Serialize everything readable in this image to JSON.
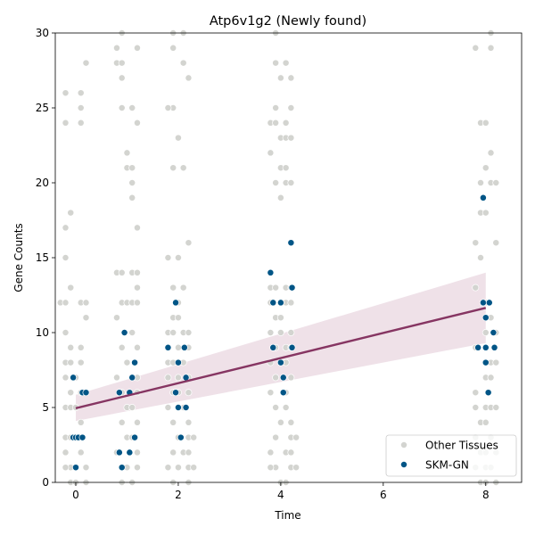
{
  "chart_data": {
    "type": "scatter",
    "title": "Atp6v1g2 (Newly found)",
    "xlabel": "Time",
    "ylabel": "Gene Counts",
    "xlim": [
      -0.4,
      8.7
    ],
    "ylim": [
      0,
      30
    ],
    "xticks": [
      0,
      2,
      4,
      6,
      8
    ],
    "yticks": [
      0,
      5,
      10,
      15,
      20,
      25,
      30
    ],
    "legend_position": "lower-right",
    "series": [
      {
        "name": "Other Tissues",
        "color": "#d3d4d0",
        "points": [
          [
            -0.2,
            26
          ],
          [
            -0.2,
            24
          ],
          [
            -0.1,
            18
          ],
          [
            -0.2,
            17
          ],
          [
            -0.2,
            15
          ],
          [
            -0.3,
            12
          ],
          [
            -0.2,
            12
          ],
          [
            -0.1,
            13
          ],
          [
            -0.2,
            10
          ],
          [
            -0.1,
            9
          ],
          [
            -0.2,
            8
          ],
          [
            -0.1,
            8
          ],
          [
            -0.2,
            7
          ],
          [
            -0.1,
            6
          ],
          [
            -0.2,
            5
          ],
          [
            -0.1,
            5
          ],
          [
            -0.2,
            3
          ],
          [
            -0.1,
            3
          ],
          [
            -0.2,
            2
          ],
          [
            -0.1,
            1
          ],
          [
            -0.2,
            1
          ],
          [
            -0.1,
            0
          ],
          [
            0.1,
            26
          ],
          [
            0.1,
            25
          ],
          [
            0.1,
            24
          ],
          [
            0.2,
            28
          ],
          [
            0.1,
            12
          ],
          [
            0.2,
            12
          ],
          [
            0.2,
            11
          ],
          [
            0.1,
            9
          ],
          [
            0.1,
            8
          ],
          [
            0.0,
            7
          ],
          [
            0.1,
            6
          ],
          [
            0.0,
            5
          ],
          [
            0.1,
            4
          ],
          [
            0.0,
            3
          ],
          [
            0.1,
            2
          ],
          [
            0.2,
            1
          ],
          [
            0.0,
            0
          ],
          [
            0.2,
            0
          ],
          [
            0.8,
            29
          ],
          [
            0.8,
            28
          ],
          [
            0.9,
            28
          ],
          [
            0.9,
            27
          ],
          [
            0.9,
            25
          ],
          [
            0.9,
            30
          ],
          [
            1.0,
            22
          ],
          [
            1.0,
            21
          ],
          [
            1.1,
            21
          ],
          [
            1.1,
            20
          ],
          [
            1.1,
            19
          ],
          [
            0.8,
            14
          ],
          [
            0.9,
            14
          ],
          [
            0.9,
            12
          ],
          [
            1.0,
            12
          ],
          [
            0.8,
            11
          ],
          [
            0.9,
            9
          ],
          [
            1.0,
            8
          ],
          [
            0.8,
            7
          ],
          [
            0.9,
            6
          ],
          [
            1.0,
            5
          ],
          [
            0.9,
            4
          ],
          [
            1.0,
            3
          ],
          [
            0.8,
            2
          ],
          [
            1.0,
            1
          ],
          [
            0.9,
            0
          ],
          [
            1.2,
            29
          ],
          [
            1.1,
            25
          ],
          [
            1.2,
            24
          ],
          [
            1.2,
            17
          ],
          [
            1.1,
            14
          ],
          [
            1.2,
            14
          ],
          [
            1.2,
            13
          ],
          [
            1.1,
            12
          ],
          [
            1.2,
            12
          ],
          [
            1.1,
            10
          ],
          [
            1.2,
            9
          ],
          [
            1.1,
            7
          ],
          [
            1.2,
            7
          ],
          [
            1.2,
            6
          ],
          [
            1.1,
            5
          ],
          [
            1.2,
            4
          ],
          [
            1.1,
            3
          ],
          [
            1.2,
            2
          ],
          [
            1.2,
            1
          ],
          [
            1.1,
            0
          ],
          [
            1.9,
            25
          ],
          [
            1.8,
            25
          ],
          [
            1.9,
            29
          ],
          [
            1.9,
            30
          ],
          [
            2.0,
            23
          ],
          [
            1.9,
            21
          ],
          [
            1.8,
            15
          ],
          [
            1.9,
            13
          ],
          [
            2.0,
            12
          ],
          [
            1.9,
            11
          ],
          [
            2.0,
            11
          ],
          [
            1.8,
            10
          ],
          [
            1.9,
            10
          ],
          [
            2.0,
            9
          ],
          [
            1.8,
            8
          ],
          [
            1.9,
            8
          ],
          [
            1.8,
            7
          ],
          [
            2.0,
            7
          ],
          [
            1.9,
            6
          ],
          [
            2.0,
            6
          ],
          [
            1.8,
            5
          ],
          [
            1.9,
            4
          ],
          [
            2.0,
            3
          ],
          [
            1.9,
            2
          ],
          [
            1.8,
            1
          ],
          [
            2.0,
            1
          ],
          [
            1.9,
            0
          ],
          [
            2.1,
            28
          ],
          [
            2.2,
            27
          ],
          [
            2.1,
            30
          ],
          [
            2.1,
            21
          ],
          [
            2.0,
            15
          ],
          [
            2.2,
            16
          ],
          [
            2.1,
            13
          ],
          [
            2.1,
            10
          ],
          [
            2.2,
            10
          ],
          [
            2.2,
            9
          ],
          [
            2.1,
            8
          ],
          [
            2.2,
            7
          ],
          [
            2.2,
            6
          ],
          [
            2.1,
            5
          ],
          [
            2.2,
            4
          ],
          [
            2.2,
            3
          ],
          [
            2.3,
            3
          ],
          [
            2.1,
            2
          ],
          [
            2.2,
            2
          ],
          [
            2.2,
            1
          ],
          [
            2.3,
            1
          ],
          [
            2.2,
            0
          ],
          [
            3.8,
            24
          ],
          [
            3.8,
            22
          ],
          [
            3.9,
            30
          ],
          [
            3.9,
            28
          ],
          [
            3.9,
            25
          ],
          [
            4.0,
            27
          ],
          [
            3.9,
            24
          ],
          [
            4.0,
            23
          ],
          [
            4.0,
            21
          ],
          [
            3.9,
            20
          ],
          [
            4.0,
            19
          ],
          [
            3.8,
            13
          ],
          [
            3.9,
            13
          ],
          [
            3.8,
            12
          ],
          [
            4.0,
            12
          ],
          [
            3.9,
            11
          ],
          [
            4.0,
            11
          ],
          [
            3.8,
            10
          ],
          [
            4.0,
            10
          ],
          [
            3.9,
            9
          ],
          [
            3.8,
            8
          ],
          [
            4.0,
            8
          ],
          [
            3.9,
            7
          ],
          [
            3.8,
            6
          ],
          [
            3.9,
            5
          ],
          [
            4.0,
            4
          ],
          [
            3.9,
            3
          ],
          [
            3.8,
            2
          ],
          [
            3.9,
            1
          ],
          [
            3.8,
            1
          ],
          [
            4.0,
            0
          ],
          [
            4.1,
            28
          ],
          [
            4.2,
            27
          ],
          [
            4.1,
            24
          ],
          [
            4.1,
            23
          ],
          [
            4.2,
            23
          ],
          [
            4.2,
            25
          ],
          [
            4.1,
            21
          ],
          [
            4.1,
            20
          ],
          [
            4.2,
            20
          ],
          [
            4.1,
            13
          ],
          [
            4.2,
            13
          ],
          [
            4.1,
            12
          ],
          [
            4.2,
            12
          ],
          [
            4.2,
            10
          ],
          [
            4.1,
            9
          ],
          [
            4.2,
            9
          ],
          [
            4.1,
            8
          ],
          [
            4.2,
            7
          ],
          [
            4.1,
            6
          ],
          [
            4.1,
            5
          ],
          [
            4.2,
            4
          ],
          [
            4.2,
            3
          ],
          [
            4.3,
            3
          ],
          [
            4.1,
            2
          ],
          [
            4.2,
            2
          ],
          [
            4.2,
            1
          ],
          [
            4.3,
            1
          ],
          [
            4.1,
            0
          ],
          [
            7.8,
            29
          ],
          [
            7.8,
            16
          ],
          [
            7.8,
            13
          ],
          [
            7.9,
            24
          ],
          [
            7.9,
            20
          ],
          [
            7.9,
            18
          ],
          [
            7.9,
            15
          ],
          [
            7.8,
            9
          ],
          [
            7.8,
            6
          ],
          [
            7.8,
            5
          ],
          [
            7.9,
            4
          ],
          [
            7.8,
            3
          ],
          [
            7.9,
            2
          ],
          [
            7.8,
            1
          ],
          [
            7.9,
            0
          ],
          [
            8.0,
            24
          ],
          [
            8.0,
            21
          ],
          [
            8.0,
            18
          ],
          [
            8.0,
            12
          ],
          [
            8.0,
            10
          ],
          [
            8.0,
            8
          ],
          [
            8.0,
            7
          ],
          [
            8.0,
            5
          ],
          [
            8.0,
            4
          ],
          [
            8.0,
            2
          ],
          [
            8.0,
            1
          ],
          [
            8.0,
            0
          ],
          [
            8.1,
            30
          ],
          [
            8.1,
            29
          ],
          [
            8.1,
            22
          ],
          [
            8.1,
            20
          ],
          [
            8.2,
            20
          ],
          [
            8.2,
            16
          ],
          [
            8.1,
            11
          ],
          [
            8.2,
            10
          ],
          [
            8.1,
            8
          ],
          [
            8.2,
            8
          ],
          [
            8.1,
            7
          ],
          [
            8.1,
            5
          ],
          [
            8.2,
            5
          ],
          [
            8.1,
            3
          ],
          [
            8.2,
            2
          ],
          [
            8.1,
            1
          ],
          [
            8.2,
            0
          ]
        ]
      },
      {
        "name": "SKM-GN",
        "color": "#005586",
        "points": [
          [
            -0.05,
            7
          ],
          [
            -0.05,
            3
          ],
          [
            0.0,
            3
          ],
          [
            0.05,
            3
          ],
          [
            0.0,
            1
          ],
          [
            0.13,
            3
          ],
          [
            0.13,
            6
          ],
          [
            0.2,
            6
          ],
          [
            0.85,
            6
          ],
          [
            0.85,
            2
          ],
          [
            0.9,
            1
          ],
          [
            0.95,
            10
          ],
          [
            1.05,
            6
          ],
          [
            1.05,
            2
          ],
          [
            1.1,
            7
          ],
          [
            1.15,
            8
          ],
          [
            1.15,
            3
          ],
          [
            1.8,
            9
          ],
          [
            1.95,
            12
          ],
          [
            1.95,
            6
          ],
          [
            2.0,
            8
          ],
          [
            2.0,
            5
          ],
          [
            2.05,
            3
          ],
          [
            2.12,
            9
          ],
          [
            2.15,
            7
          ],
          [
            2.15,
            5
          ],
          [
            3.8,
            14
          ],
          [
            3.85,
            12
          ],
          [
            3.85,
            9
          ],
          [
            4.0,
            12
          ],
          [
            4.0,
            8
          ],
          [
            4.05,
            7
          ],
          [
            4.05,
            6
          ],
          [
            4.2,
            16
          ],
          [
            4.22,
            13
          ],
          [
            4.22,
            9
          ],
          [
            7.85,
            9
          ],
          [
            7.95,
            19
          ],
          [
            7.95,
            12
          ],
          [
            8.0,
            11
          ],
          [
            8.0,
            9
          ],
          [
            8.0,
            8
          ],
          [
            8.05,
            6
          ],
          [
            8.07,
            12
          ],
          [
            8.15,
            10
          ],
          [
            8.17,
            9
          ]
        ]
      }
    ],
    "regression": {
      "x": [
        0,
        8
      ],
      "y": [
        4.95,
        11.65
      ],
      "ci_lower": [
        4.1,
        9.3
      ],
      "ci_upper": [
        5.85,
        14.0
      ],
      "line_color": "#863562",
      "band_color": "#e8d4de"
    }
  }
}
